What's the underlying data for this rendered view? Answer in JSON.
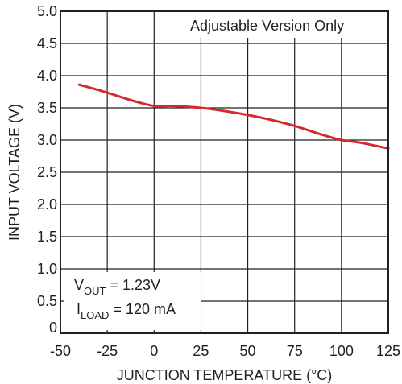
{
  "chart_data": {
    "type": "line",
    "xlabel": "JUNCTION TEMPERATURE (°C)",
    "ylabel": "INPUT VOLTAGE (V)",
    "xlim": [
      -50,
      125
    ],
    "ylim": [
      0,
      5.0
    ],
    "x_ticks": [
      "-50",
      "-25",
      "0",
      "25",
      "50",
      "75",
      "100",
      "125"
    ],
    "y_ticks": [
      "0",
      "0.5",
      "1.0",
      "1.5",
      "2.0",
      "2.5",
      "3.0",
      "3.5",
      "4.0",
      "4.5",
      "5.0"
    ],
    "grid": true,
    "series": [
      {
        "color": "#d7282f",
        "x": [
          -40,
          -30,
          -20,
          -10,
          0,
          10,
          25,
          40,
          50,
          60,
          75,
          90,
          100,
          110,
          125
        ],
        "y": [
          3.86,
          3.78,
          3.69,
          3.6,
          3.53,
          3.53,
          3.5,
          3.44,
          3.39,
          3.33,
          3.22,
          3.08,
          3.0,
          2.96,
          2.87
        ]
      }
    ],
    "annotations": {
      "version_note": "Adjustable Version Only",
      "vout_main": "V",
      "vout_sub": "OUT",
      "vout_value": " =  1.23V",
      "iload_main": "I",
      "iload_sub": "LOAD",
      "iload_value": " = 120 mA"
    }
  }
}
